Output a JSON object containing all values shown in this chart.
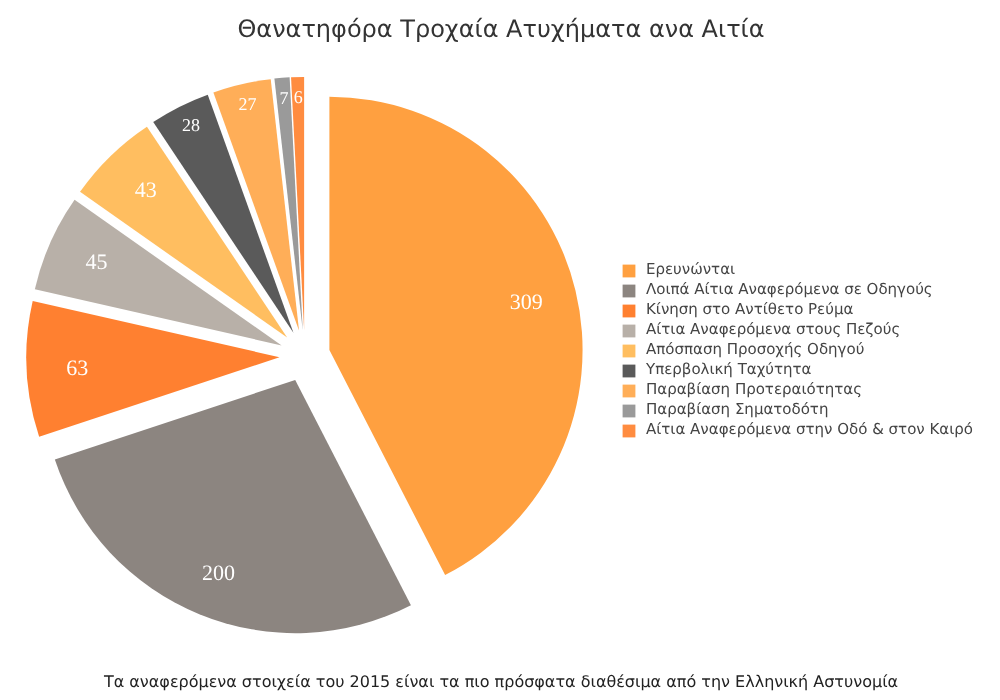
{
  "chart_data": {
    "type": "pie",
    "title": "Θανατηφόρα Τροχαία Ατυχήματα ανα Αιτία",
    "categories": [
      "Ερευνώνται",
      "Λοιπά Αίτια Αναφερόμενα σε Οδηγούς",
      "Κίνηση στο Αντίθετο Ρεύμα",
      "Αίτια Αναφερόμενα στους Πεζούς",
      "Απόσπαση Προσοχής Οδηγού",
      "Υπερβολική Ταχύτητα",
      "Παραβίαση Προτεραιότητας",
      "Παραβίαση Σηματοδότη",
      "Αίτια Αναφερόμενα στην Οδό & στον Καιρό"
    ],
    "values": [
      309,
      200,
      63,
      45,
      43,
      28,
      27,
      7,
      6
    ],
    "colors": [
      "#ffa040",
      "#8c8580",
      "#ff8030",
      "#b8b0a8",
      "#ffbe60",
      "#5a5a5a",
      "#ffae58",
      "#9a9a9a",
      "#ff8c40"
    ],
    "data_labels": true,
    "legend": "right",
    "annotations": [
      "Τα αναφερόμενα στοιχεία του 2015 είναι τα πιο πρόσφατα διαθέσιμα από την Ελληνική Αστυνομία"
    ]
  }
}
